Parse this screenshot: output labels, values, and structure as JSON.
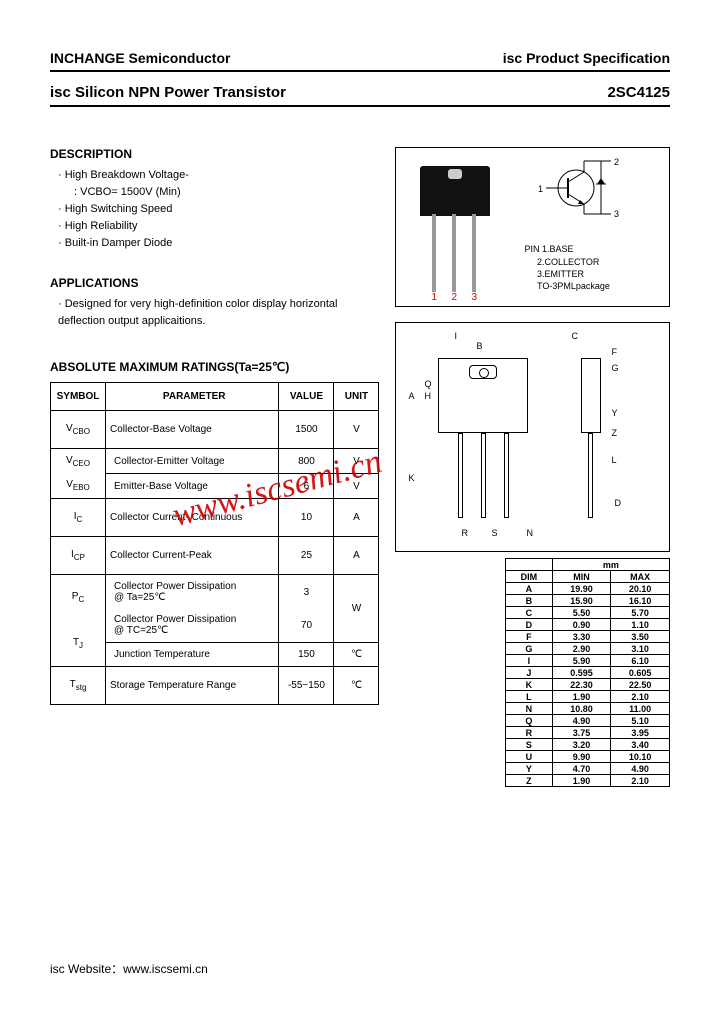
{
  "header": {
    "company": "INCHANGE Semiconductor",
    "doc_type": "isc Product Specification"
  },
  "subheader": {
    "title": "isc Silicon NPN Power Transistor",
    "part": "2SC4125"
  },
  "description": {
    "title": "DESCRIPTION",
    "items": [
      "High Breakdown Voltage-",
      "High Switching Speed",
      "High Reliability",
      "Built-in Damper Diode"
    ],
    "sub_item": ": VCBO= 1500V (Min)"
  },
  "applications": {
    "title": "APPLICATIONS",
    "text": "Designed for very high-definition color display horizontal deflection output applicaitions."
  },
  "package": {
    "pin_label": "PIN",
    "pin1": "1.BASE",
    "pin2": "2.COLLECTOR",
    "pin3": "3.EMITTER",
    "pkg_name": "TO-3PMLpackage",
    "num1": "1",
    "num2": "2",
    "num3": "3",
    "schem_1": "1",
    "schem_2": "2",
    "schem_3": "3"
  },
  "ratings": {
    "title": "ABSOLUTE MAXIMUM RATINGS(Ta=25℃)",
    "headers": {
      "symbol": "SYMBOL",
      "parameter": "PARAMETER",
      "value": "VALUE",
      "unit": "UNIT"
    },
    "rows": [
      {
        "sym": "VCBO",
        "par": "Collector-Base Voltage",
        "val": "1500",
        "unit": "V",
        "tall": true
      },
      {
        "sym": "VCEO",
        "par": "Collector-Emitter Voltage",
        "val": "800",
        "unit": "V"
      },
      {
        "sym": "VEBO",
        "par": "Emitter-Base Voltage",
        "val": "6",
        "unit": "V"
      },
      {
        "sym": "IC",
        "par": "Collector Current- Continuous",
        "val": "10",
        "unit": "A",
        "tall": true
      },
      {
        "sym": "ICP",
        "par": "Collector Current-Peak",
        "val": "25",
        "unit": "A",
        "tall": true
      },
      {
        "sym": "PC",
        "par": "Collector Power Dissipation\n@ Ta=25℃\n\nCollector Power Dissipation\n@ TC=25℃",
        "val": "3\n\n\n70",
        "unit": "W",
        "pc": true
      },
      {
        "sym": "TJ",
        "par": "Junction Temperature",
        "val": "150",
        "unit": "℃"
      },
      {
        "sym": "Tstg",
        "par": "Storage Temperature Range",
        "val": "-55~150",
        "unit": "℃",
        "tall": true
      }
    ]
  },
  "dimensions": {
    "unit_label": "mm",
    "headers": {
      "dim": "DIM",
      "min": "MIN",
      "max": "MAX"
    },
    "rows": [
      {
        "d": "A",
        "min": "19.90",
        "max": "20.10"
      },
      {
        "d": "B",
        "min": "15.90",
        "max": "16.10"
      },
      {
        "d": "C",
        "min": "5.50",
        "max": "5.70"
      },
      {
        "d": "D",
        "min": "0.90",
        "max": "1.10"
      },
      {
        "d": "F",
        "min": "3.30",
        "max": "3.50"
      },
      {
        "d": "G",
        "min": "2.90",
        "max": "3.10"
      },
      {
        "d": "I",
        "min": "5.90",
        "max": "6.10"
      },
      {
        "d": "J",
        "min": "0.595",
        "max": "0.605"
      },
      {
        "d": "K",
        "min": "22.30",
        "max": "22.50"
      },
      {
        "d": "L",
        "min": "1.90",
        "max": "2.10"
      },
      {
        "d": "N",
        "min": "10.80",
        "max": "11.00"
      },
      {
        "d": "Q",
        "min": "4.90",
        "max": "5.10"
      },
      {
        "d": "R",
        "min": "3.75",
        "max": "3.95"
      },
      {
        "d": "S",
        "min": "3.20",
        "max": "3.40"
      },
      {
        "d": "U",
        "min": "9.90",
        "max": "10.10"
      },
      {
        "d": "Y",
        "min": "4.70",
        "max": "4.90"
      },
      {
        "d": "Z",
        "min": "1.90",
        "max": "2.10"
      }
    ],
    "labels": [
      "A",
      "B",
      "C",
      "F",
      "G",
      "H",
      "I",
      "K",
      "L",
      "N",
      "Q",
      "R",
      "S",
      "Y",
      "Z",
      "D"
    ]
  },
  "watermark": "www.iscsemi.cn",
  "footer": "isc Website：www.iscsemi.cn",
  "colors": {
    "text": "#000000",
    "accent_red": "#cc0000",
    "border": "#000000",
    "bg": "#ffffff"
  }
}
